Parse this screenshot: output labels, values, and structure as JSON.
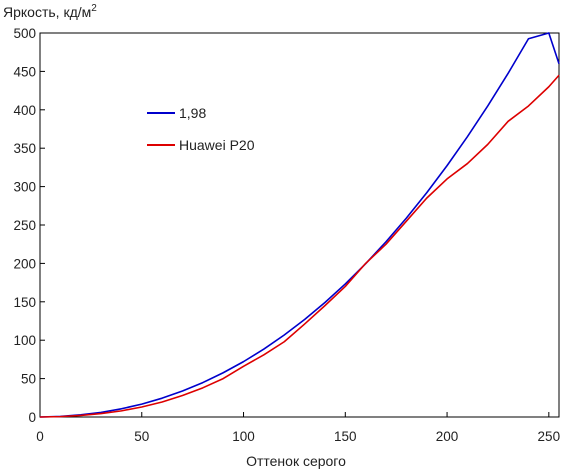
{
  "chart_data": {
    "type": "line",
    "ylabel": "Яркость, кд/м",
    "ylabel_superscript": "2",
    "xlabel": "Оттенок серого",
    "xlim": [
      0,
      255
    ],
    "ylim": [
      0,
      500
    ],
    "xticks": [
      "0",
      "50",
      "100",
      "150",
      "200",
      "250"
    ],
    "yticks": [
      "0",
      "50",
      "100",
      "150",
      "200",
      "250",
      "300",
      "350",
      "400",
      "450",
      "500"
    ],
    "grid": false,
    "legend_position": "upper-left-inside",
    "series": [
      {
        "name": "1,98",
        "color": "#0000cc",
        "x": [
          0,
          10,
          20,
          30,
          40,
          50,
          60,
          70,
          80,
          90,
          100,
          110,
          120,
          130,
          140,
          150,
          160,
          170,
          180,
          190,
          200,
          210,
          220,
          230,
          240,
          250,
          255
        ],
        "y": [
          0,
          0.8,
          2.8,
          6,
          10.7,
          16.8,
          24.5,
          33.8,
          44.8,
          57.6,
          72.1,
          88.5,
          106.8,
          126.9,
          149.1,
          173.3,
          199.6,
          228.2,
          259,
          292,
          327.3,
          365,
          405,
          447.5,
          492.5,
          540,
          460
        ]
      },
      {
        "name": "Huawei P20",
        "color": "#dd0000",
        "x": [
          0,
          10,
          20,
          30,
          40,
          50,
          60,
          70,
          80,
          90,
          100,
          110,
          120,
          130,
          140,
          150,
          160,
          170,
          180,
          190,
          200,
          210,
          220,
          230,
          240,
          250,
          255
        ],
        "y": [
          0,
          0.5,
          2,
          4.5,
          8,
          13,
          19.5,
          28,
          38,
          50,
          66,
          81,
          98,
          121,
          145,
          170,
          200,
          225,
          255,
          285,
          310,
          330,
          355,
          385,
          405,
          430,
          445
        ]
      }
    ]
  }
}
